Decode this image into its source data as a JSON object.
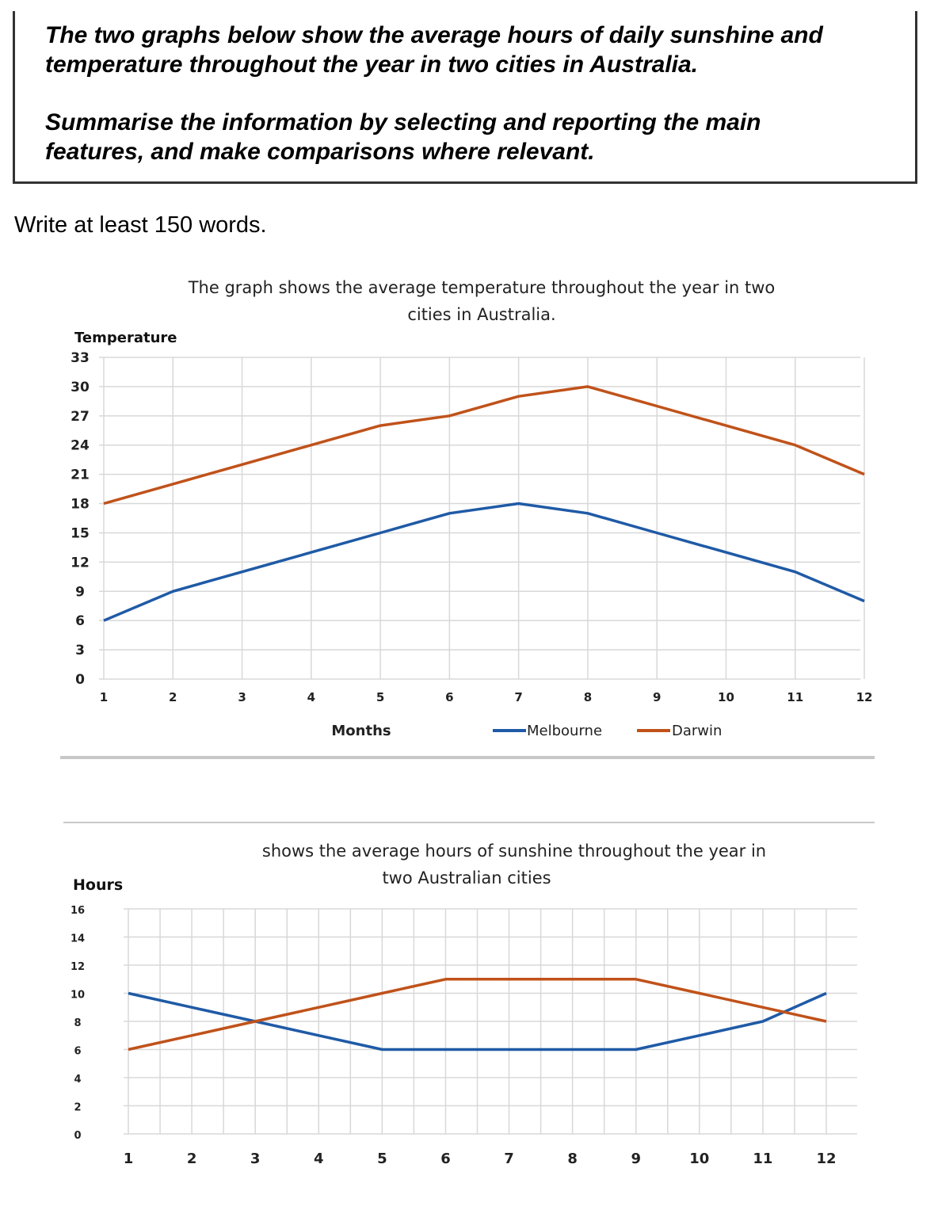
{
  "task": {
    "prompt_lines": [
      "The two graphs below show the average hours of daily sunshine and",
      "temperature throughout the year in two cities in Australia."
    ],
    "summary_lines": [
      "Summarise the information by selecting and reporting the main",
      "features, and make comparisons where relevant."
    ]
  },
  "instruction": "Write at least 150 words.",
  "colors": {
    "melbourne": "#1f5aa6",
    "darwin": "#c0521a",
    "grid": "#d8d8d8"
  },
  "chart_data": [
    {
      "type": "line",
      "title_lines": [
        "The graph shows the average temperature throughout the year in two",
        "cities in Australia."
      ],
      "ylabel": "Temperature",
      "xlabel": "Months",
      "ylim": [
        0,
        33
      ],
      "yticks": [
        0,
        3,
        6,
        9,
        12,
        15,
        18,
        21,
        24,
        27,
        30,
        33
      ],
      "x": [
        1,
        2,
        3,
        4,
        5,
        6,
        7,
        8,
        9,
        10,
        11,
        12
      ],
      "legend_position": "bottom",
      "grid": true,
      "series": [
        {
          "name": "Melbourne",
          "color": "#1f5aa6",
          "values": [
            6,
            9,
            11,
            13,
            15,
            17,
            18,
            17,
            15,
            13,
            11,
            8
          ]
        },
        {
          "name": "Darwin",
          "color": "#c0521a",
          "values": [
            18,
            20,
            22,
            24,
            26,
            27,
            29,
            30,
            28,
            26,
            24,
            21
          ]
        }
      ]
    },
    {
      "type": "line",
      "title_lines": [
        "shows the average hours of sunshine throughout the year in",
        "two Australian cities"
      ],
      "ylabel": "Hours",
      "ylim": [
        0,
        16
      ],
      "yticks": [
        0,
        2,
        4,
        6,
        8,
        10,
        12,
        14,
        16
      ],
      "x": [
        1,
        2,
        3,
        4,
        5,
        6,
        7,
        8,
        9,
        10,
        11,
        12
      ],
      "grid": true,
      "series": [
        {
          "color": "#1f5aa6",
          "values": [
            10,
            9,
            8,
            7,
            6,
            6,
            6,
            6,
            6,
            7,
            8,
            10
          ]
        },
        {
          "color": "#c0521a",
          "values": [
            6,
            7,
            8,
            9,
            10,
            11,
            11,
            11,
            11,
            10,
            9,
            8
          ]
        }
      ]
    }
  ]
}
